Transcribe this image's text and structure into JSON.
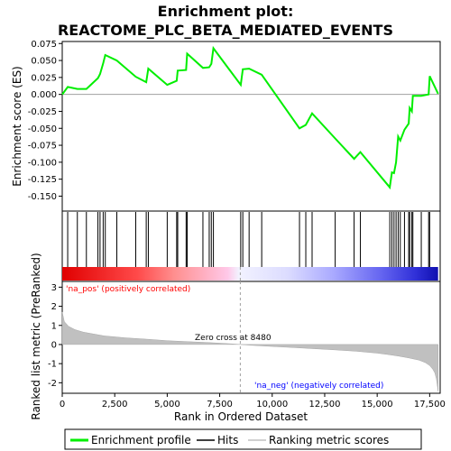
{
  "chart_data": {
    "type": "line",
    "title_line1": "Enrichment plot:",
    "title_line2": "REACTOME_PLC_BETA_MEDIATED_EVENTS",
    "es_ylabel": "Enrichment score (ES)",
    "metric_ylabel": "Ranked list metric (PreRanked)",
    "xlabel": "Rank in Ordered Dataset",
    "x_ticks": [
      "0",
      "2,500",
      "5,000",
      "7,500",
      "10,000",
      "12,500",
      "15,000",
      "17,500"
    ],
    "x_tick_values": [
      0,
      2500,
      5000,
      7500,
      10000,
      12500,
      15000,
      17500
    ],
    "es_ticks": [
      "0.075",
      "0.050",
      "0.025",
      "0.000",
      "-0.025",
      "-0.050",
      "-0.075",
      "-0.100",
      "-0.125",
      "-0.150"
    ],
    "es_tick_values": [
      0.075,
      0.05,
      0.025,
      0.0,
      -0.025,
      -0.05,
      -0.075,
      -0.1,
      -0.125,
      -0.15
    ],
    "metric_ticks": [
      "3",
      "2",
      "1",
      "0",
      "-1",
      "-2"
    ],
    "metric_tick_values": [
      3,
      2,
      1,
      0,
      -1,
      -2
    ],
    "xlim": [
      0,
      18000
    ],
    "es_ylim": [
      -0.172,
      0.078
    ],
    "metric_ylim": [
      -2.55,
      3.3
    ],
    "total_genes": 17900,
    "zero_cross_rank": 8480,
    "zero_cross_label": "Zero cross at 8480",
    "pos_label": "'na_pos' (positively correlated)",
    "neg_label": "'na_neg' (negatively correlated)",
    "hits": [
      260,
      720,
      1150,
      1700,
      1800,
      1950,
      2050,
      2600,
      3500,
      4000,
      4100,
      5000,
      5450,
      5500,
      5900,
      5950,
      6700,
      7000,
      7100,
      7200,
      8500,
      8600,
      8900,
      9500,
      11300,
      11600,
      11900,
      13000,
      13900,
      14200,
      15600,
      15700,
      15800,
      15900,
      16000,
      16100,
      16300,
      16500,
      16550,
      16650,
      16700,
      17100,
      17450,
      17500
    ],
    "es_profile_x": [
      0,
      260,
      720,
      1150,
      1700,
      1800,
      1950,
      2050,
      2600,
      3500,
      4000,
      4100,
      5000,
      5450,
      5500,
      5900,
      5950,
      6700,
      7000,
      7100,
      7200,
      8500,
      8600,
      8900,
      9500,
      11300,
      11600,
      11900,
      13000,
      13900,
      14200,
      15600,
      15700,
      15800,
      15900,
      16000,
      16100,
      16300,
      16500,
      16550,
      16650,
      16700,
      17100,
      17450,
      17500,
      17900
    ],
    "es_profile_y": [
      0.0,
      0.011,
      0.008,
      0.008,
      0.024,
      0.03,
      0.046,
      0.058,
      0.05,
      0.026,
      0.018,
      0.038,
      0.014,
      0.02,
      0.035,
      0.036,
      0.06,
      0.039,
      0.04,
      0.045,
      0.068,
      0.014,
      0.037,
      0.038,
      0.029,
      -0.05,
      -0.045,
      -0.028,
      -0.065,
      -0.095,
      -0.085,
      -0.137,
      -0.115,
      -0.116,
      -0.1,
      -0.062,
      -0.068,
      -0.052,
      -0.043,
      -0.02,
      -0.025,
      -0.002,
      -0.002,
      0.0,
      0.027,
      0.001
    ],
    "metric_profile_x": [
      0,
      100,
      300,
      600,
      1000,
      1500,
      2000,
      3000,
      4000,
      5000,
      6000,
      7000,
      8000,
      8480,
      9000,
      10000,
      11000,
      12000,
      13000,
      14000,
      15000,
      15500,
      16000,
      16500,
      17000,
      17300,
      17500,
      17650,
      17750,
      17820,
      17870,
      17900
    ],
    "metric_profile_y": [
      1.7,
      1.2,
      0.95,
      0.78,
      0.65,
      0.55,
      0.45,
      0.35,
      0.28,
      0.2,
      0.15,
      0.1,
      0.04,
      0.0,
      -0.04,
      -0.1,
      -0.16,
      -0.22,
      -0.28,
      -0.35,
      -0.45,
      -0.52,
      -0.6,
      -0.7,
      -0.82,
      -0.95,
      -1.1,
      -1.3,
      -1.5,
      -1.8,
      -2.2,
      -2.45
    ],
    "colors": {
      "enrichment_line": "#00ee00",
      "hit_line": "#000000",
      "metric_fill": "#c0c0c0",
      "pos_text": "#ff0000",
      "neg_text": "#0000ff",
      "zero_line": "#a0a0a0"
    },
    "legend": [
      {
        "label": "Enrichment profile",
        "swatch": "line",
        "color": "#00ee00"
      },
      {
        "label": "Hits",
        "swatch": "line",
        "color": "#000000"
      },
      {
        "label": "Ranking metric scores",
        "swatch": "line",
        "color": "#c0c0c0"
      }
    ]
  }
}
